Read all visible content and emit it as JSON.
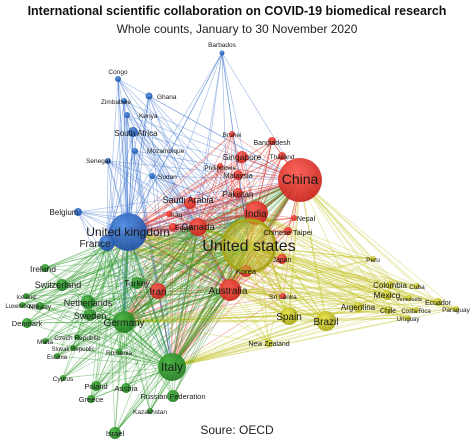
{
  "title": "International scientific collaboration on COVID-19 biomedical research",
  "subtitle": "Whole counts, January to 30 November 2020",
  "source": "Soure: OECD",
  "colors": {
    "asia_pacific": "#e8312a",
    "africa_blue": "#2f6fcb",
    "europe": "#2f9a2c",
    "americas": "#c9cc1f",
    "usa": "#c9c423"
  },
  "nodes": [
    {
      "id": "barbados",
      "label": "Barbados",
      "cluster": "africa_blue"
    },
    {
      "id": "congo",
      "label": "Congo",
      "cluster": "africa_blue"
    },
    {
      "id": "ghana",
      "label": "Ghana",
      "cluster": "africa_blue"
    },
    {
      "id": "zimbabwe",
      "label": "Zimbabwe",
      "cluster": "africa_blue"
    },
    {
      "id": "kenya",
      "label": "Kenya",
      "cluster": "africa_blue"
    },
    {
      "id": "south_africa",
      "label": "South Africa",
      "cluster": "africa_blue"
    },
    {
      "id": "mozambique",
      "label": "Mozambique",
      "cluster": "africa_blue"
    },
    {
      "id": "senegal",
      "label": "Senegal",
      "cluster": "africa_blue"
    },
    {
      "id": "sudan",
      "label": "Sudan",
      "cluster": "africa_blue"
    },
    {
      "id": "belgium",
      "label": "Belgium",
      "cluster": "africa_blue"
    },
    {
      "id": "uk",
      "label": "United kingdom",
      "cluster": "africa_blue"
    },
    {
      "id": "france",
      "label": "France",
      "cluster": "africa_blue"
    },
    {
      "id": "brunei",
      "label": "Brunei",
      "cluster": "asia_pacific"
    },
    {
      "id": "bangladesh",
      "label": "Bangladesh",
      "cluster": "asia_pacific"
    },
    {
      "id": "singapore",
      "label": "Singapore",
      "cluster": "asia_pacific"
    },
    {
      "id": "thailand",
      "label": "Thailand",
      "cluster": "asia_pacific"
    },
    {
      "id": "philippines",
      "label": "Philippines",
      "cluster": "asia_pacific"
    },
    {
      "id": "malaysia",
      "label": "Malaysia",
      "cluster": "asia_pacific"
    },
    {
      "id": "pakistan",
      "label": "Pakistan",
      "cluster": "asia_pacific"
    },
    {
      "id": "china",
      "label": "China",
      "cluster": "asia_pacific"
    },
    {
      "id": "saudi",
      "label": "Saudi Arabia",
      "cluster": "asia_pacific"
    },
    {
      "id": "iraq",
      "label": "Iraq",
      "cluster": "asia_pacific"
    },
    {
      "id": "egypt",
      "label": "Egypt",
      "cluster": "asia_pacific"
    },
    {
      "id": "canada",
      "label": "Canada",
      "cluster": "asia_pacific"
    },
    {
      "id": "india",
      "label": "India",
      "cluster": "asia_pacific"
    },
    {
      "id": "nepal",
      "label": "Nepal",
      "cluster": "asia_pacific"
    },
    {
      "id": "taipei",
      "label": "Chinese Taipei",
      "cluster": "asia_pacific"
    },
    {
      "id": "japan",
      "label": "Japan",
      "cluster": "asia_pacific"
    },
    {
      "id": "korea",
      "label": "Korea",
      "cluster": "asia_pacific"
    },
    {
      "id": "iran",
      "label": "Iran",
      "cluster": "asia_pacific"
    },
    {
      "id": "australia",
      "label": "Australia",
      "cluster": "asia_pacific"
    },
    {
      "id": "sri_lanka",
      "label": "Sri Lanka",
      "cluster": "asia_pacific"
    },
    {
      "id": "usa",
      "label": "United states",
      "cluster": "usa"
    },
    {
      "id": "peru",
      "label": "Peru",
      "cluster": "americas"
    },
    {
      "id": "colombia",
      "label": "Colombia",
      "cluster": "americas"
    },
    {
      "id": "cuba",
      "label": "Cuba",
      "cluster": "americas"
    },
    {
      "id": "mexico",
      "label": "Mexico",
      "cluster": "americas"
    },
    {
      "id": "venezuela",
      "label": "Venezuela",
      "cluster": "americas"
    },
    {
      "id": "ecuador",
      "label": "Ecuador",
      "cluster": "americas"
    },
    {
      "id": "chile",
      "label": "Chile",
      "cluster": "americas"
    },
    {
      "id": "costa_rica",
      "label": "Costa Rica",
      "cluster": "americas"
    },
    {
      "id": "paraguay",
      "label": "Paraguay",
      "cluster": "americas"
    },
    {
      "id": "uruguay",
      "label": "Uruguay",
      "cluster": "americas"
    },
    {
      "id": "argentina",
      "label": "Argentina",
      "cluster": "americas"
    },
    {
      "id": "spain",
      "label": "Spain",
      "cluster": "americas"
    },
    {
      "id": "brazil",
      "label": "Brazil",
      "cluster": "americas"
    },
    {
      "id": "new_zealand",
      "label": "New Zealand",
      "cluster": "americas"
    },
    {
      "id": "ireland",
      "label": "Ireland",
      "cluster": "europe"
    },
    {
      "id": "switzerland",
      "label": "Switzerland",
      "cluster": "europe"
    },
    {
      "id": "iceland",
      "label": "Iceland",
      "cluster": "europe"
    },
    {
      "id": "luxembourg",
      "label": "Luxembourg",
      "cluster": "europe"
    },
    {
      "id": "norway",
      "label": "Norway",
      "cluster": "europe"
    },
    {
      "id": "netherlands",
      "label": "Netherlands",
      "cluster": "europe"
    },
    {
      "id": "sweden",
      "label": "Sweden",
      "cluster": "europe"
    },
    {
      "id": "denmark",
      "label": "Denmark",
      "cluster": "europe"
    },
    {
      "id": "turkey",
      "label": "Turkey",
      "cluster": "europe"
    },
    {
      "id": "germany",
      "label": "Germany",
      "cluster": "europe"
    },
    {
      "id": "malta",
      "label": "Malta",
      "cluster": "europe"
    },
    {
      "id": "czech",
      "label": "Czech Republic",
      "cluster": "europe"
    },
    {
      "id": "slovak",
      "label": "Slovak Republic",
      "cluster": "europe"
    },
    {
      "id": "estonia",
      "label": "Estonia",
      "cluster": "europe"
    },
    {
      "id": "romania",
      "label": "Romania",
      "cluster": "europe"
    },
    {
      "id": "cyprus",
      "label": "Cyprus",
      "cluster": "europe"
    },
    {
      "id": "italy",
      "label": "Italy",
      "cluster": "europe"
    },
    {
      "id": "poland",
      "label": "Poland",
      "cluster": "europe"
    },
    {
      "id": "austria",
      "label": "Austria",
      "cluster": "europe"
    },
    {
      "id": "greece",
      "label": "Greece",
      "cluster": "europe"
    },
    {
      "id": "russia",
      "label": "Russian Federation",
      "cluster": "europe"
    },
    {
      "id": "kazakhstan",
      "label": "Kazakhstan",
      "cluster": "europe"
    },
    {
      "id": "israel",
      "label": "Israel",
      "cluster": "europe"
    }
  ]
}
